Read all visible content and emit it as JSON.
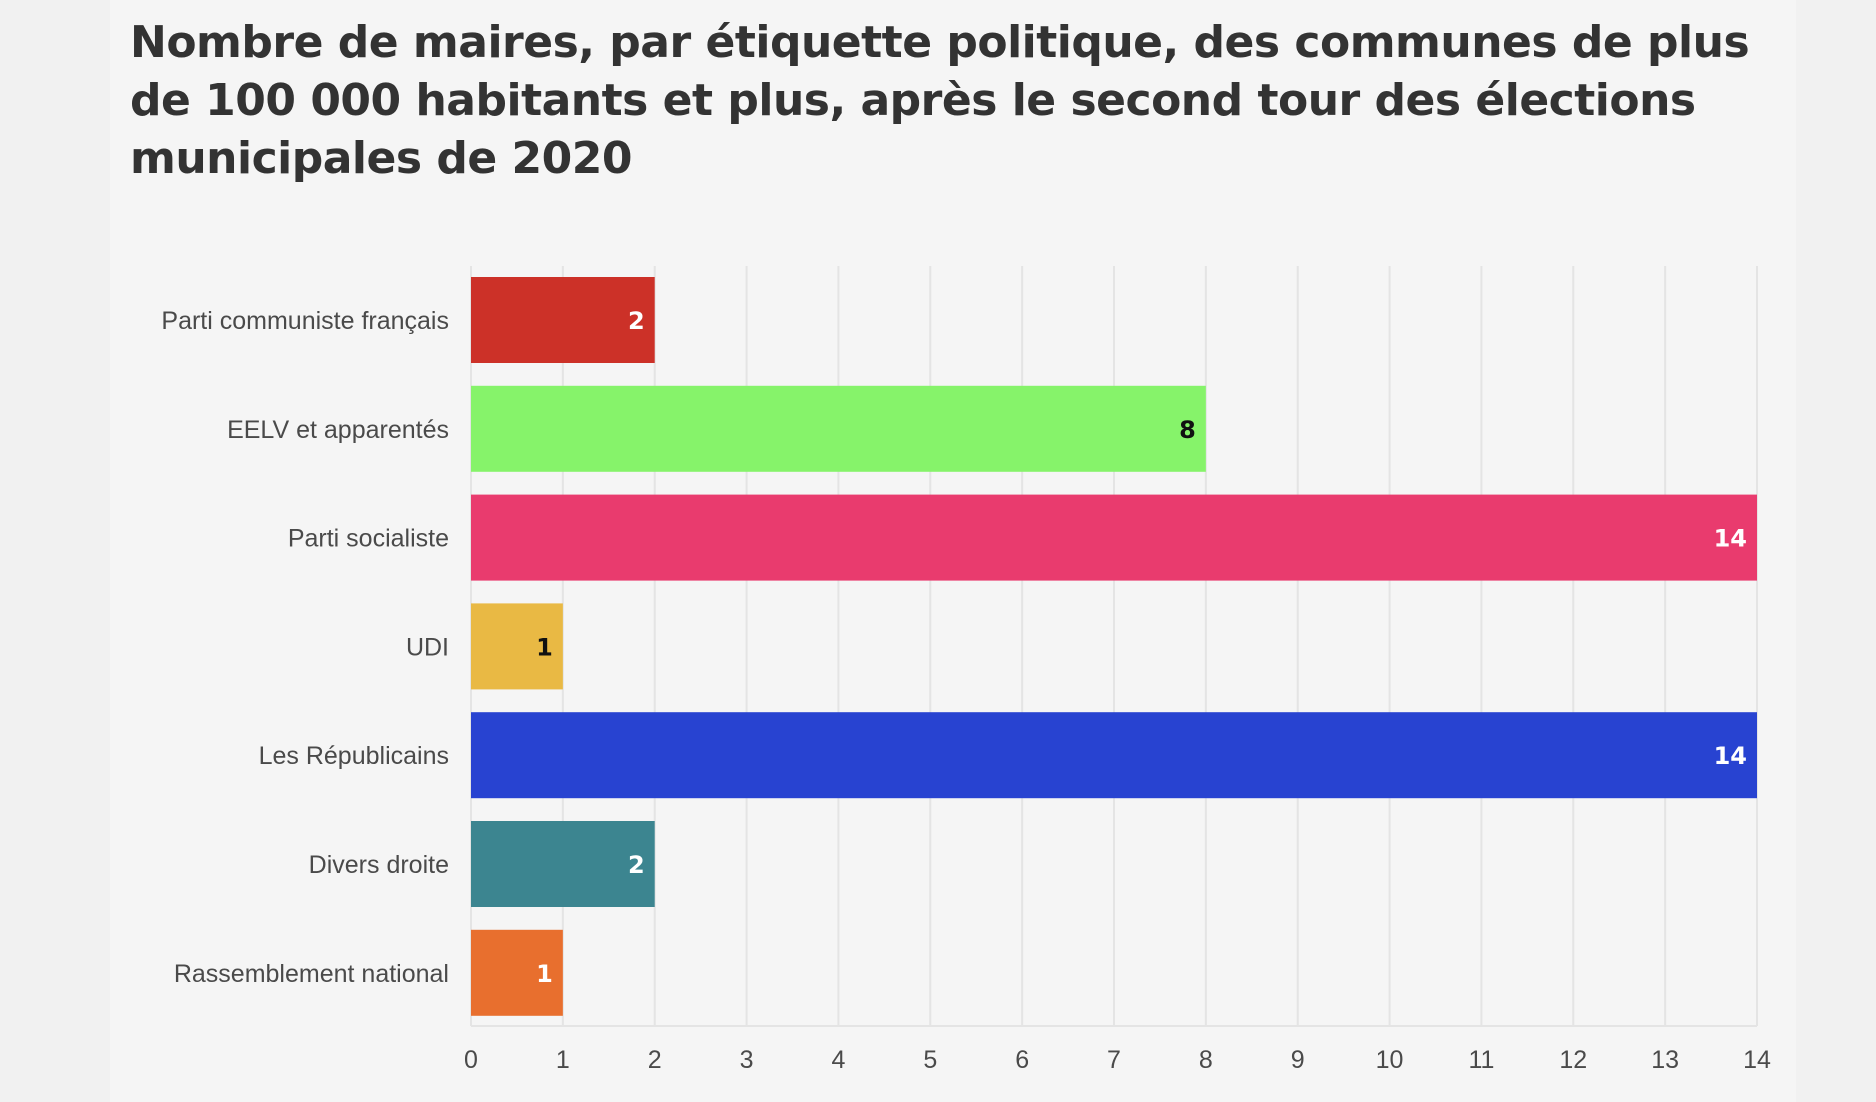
{
  "chart_data": {
    "type": "bar",
    "orientation": "horizontal",
    "title": "Nombre de maires, par étiquette politique, des communes de plus de 100 000 habitants et plus, après le second tour des élections municipales de 2020",
    "categories": [
      "Parti communiste français",
      "EELV et apparentés",
      "Parti socialiste",
      "UDI",
      "Les Républicains",
      "Divers droite",
      "Rassemblement national"
    ],
    "values": [
      2,
      8,
      14,
      1,
      14,
      2,
      1
    ],
    "colors": [
      "#cc3128",
      "#86f36a",
      "#e93b6e",
      "#e9b944",
      "#2843d1",
      "#3c8590",
      "#e86f2e"
    ],
    "label_colors": [
      "#ffffff",
      "#111111",
      "#ffffff",
      "#111111",
      "#ffffff",
      "#ffffff",
      "#ffffff"
    ],
    "xlim": [
      0,
      14
    ],
    "xticks": [
      0,
      1,
      2,
      3,
      4,
      5,
      6,
      7,
      8,
      9,
      10,
      11,
      12,
      13,
      14
    ],
    "xlabel": "",
    "ylabel": "",
    "grid": true,
    "legend": false,
    "data_labels": true
  }
}
